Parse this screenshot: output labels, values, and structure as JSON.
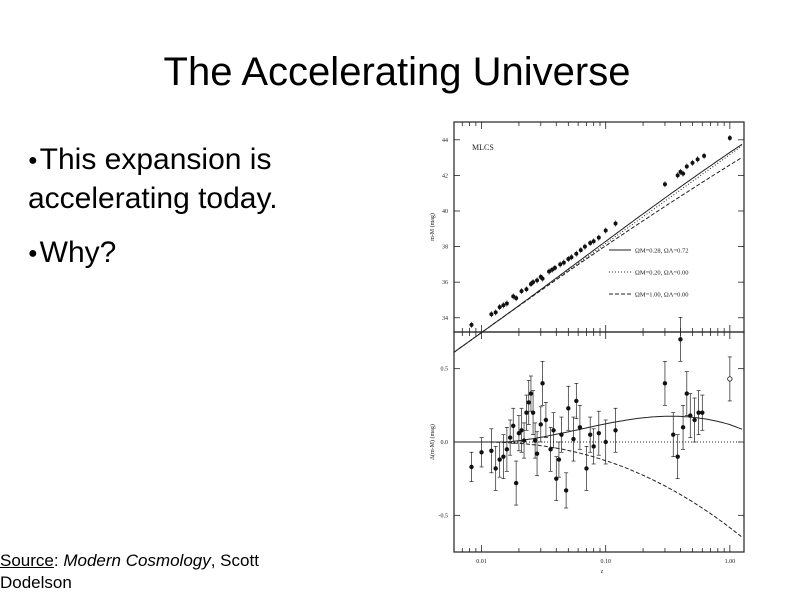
{
  "slide": {
    "title": "The Accelerating Universe",
    "bullets": [
      {
        "text": "This expansion is accelerating today."
      },
      {
        "text": "Why?"
      }
    ],
    "source": {
      "label": "Source",
      "sep": ": ",
      "book": "Modern Cosmology",
      "rest": ", Scott Dodelson"
    }
  },
  "chart_data": [
    {
      "type": "scatter",
      "title": "MLCS",
      "xlabel": "z",
      "ylabel": "m-M (mag)",
      "xscale": "log",
      "xlim": [
        0.006,
        1.3
      ],
      "ylim": [
        33.2,
        45
      ],
      "yticks": [
        34,
        36,
        38,
        40,
        42,
        44
      ],
      "ytick_labels": [
        "34",
        "36",
        "38",
        "40",
        "42",
        "44"
      ],
      "legend_position": "center-right",
      "series": [
        {
          "name": "ΩM=0.28, ΩΛ=0.72",
          "style": "solid"
        },
        {
          "name": "ΩM=0.20, ΩΛ=0.00",
          "style": "dotted"
        },
        {
          "name": "ΩM=1.00, ΩΛ=0.00",
          "style": "dashed"
        }
      ],
      "points": [
        {
          "x": 0.0083,
          "y": 33.6
        },
        {
          "x": 0.012,
          "y": 34.2
        },
        {
          "x": 0.013,
          "y": 34.3
        },
        {
          "x": 0.014,
          "y": 34.6
        },
        {
          "x": 0.015,
          "y": 34.7
        },
        {
          "x": 0.016,
          "y": 34.8
        },
        {
          "x": 0.018,
          "y": 35.2
        },
        {
          "x": 0.019,
          "y": 35.1
        },
        {
          "x": 0.021,
          "y": 35.5
        },
        {
          "x": 0.023,
          "y": 35.6
        },
        {
          "x": 0.025,
          "y": 35.9
        },
        {
          "x": 0.026,
          "y": 36.0
        },
        {
          "x": 0.028,
          "y": 36.1
        },
        {
          "x": 0.03,
          "y": 36.3
        },
        {
          "x": 0.031,
          "y": 36.2
        },
        {
          "x": 0.035,
          "y": 36.6
        },
        {
          "x": 0.037,
          "y": 36.7
        },
        {
          "x": 0.039,
          "y": 36.8
        },
        {
          "x": 0.043,
          "y": 37.0
        },
        {
          "x": 0.046,
          "y": 37.1
        },
        {
          "x": 0.05,
          "y": 37.3
        },
        {
          "x": 0.053,
          "y": 37.4
        },
        {
          "x": 0.058,
          "y": 37.6
        },
        {
          "x": 0.063,
          "y": 37.8
        },
        {
          "x": 0.068,
          "y": 38.0
        },
        {
          "x": 0.075,
          "y": 38.2
        },
        {
          "x": 0.08,
          "y": 38.3
        },
        {
          "x": 0.088,
          "y": 38.5
        },
        {
          "x": 0.1,
          "y": 38.9
        },
        {
          "x": 0.12,
          "y": 39.3
        },
        {
          "x": 0.3,
          "y": 41.5
        },
        {
          "x": 0.38,
          "y": 42.0
        },
        {
          "x": 0.4,
          "y": 42.2
        },
        {
          "x": 0.42,
          "y": 42.1
        },
        {
          "x": 0.45,
          "y": 42.5
        },
        {
          "x": 0.5,
          "y": 42.7
        },
        {
          "x": 0.55,
          "y": 42.9
        },
        {
          "x": 0.62,
          "y": 43.1
        },
        {
          "x": 1.0,
          "y": 44.1
        }
      ]
    },
    {
      "type": "scatter",
      "xlabel": "z",
      "ylabel": "Δ(m-M) (mag)",
      "xscale": "log",
      "xlim": [
        0.006,
        1.3
      ],
      "ylim": [
        -0.75,
        0.75
      ],
      "xticks": [
        0.01,
        0.1,
        1.0
      ],
      "xtick_labels": [
        "0.01",
        "0.10",
        "1.00"
      ],
      "yticks": [
        -0.5,
        0.0,
        0.5
      ],
      "ytick_labels": [
        "-0.5",
        "0.0",
        "0.5"
      ],
      "points": [
        {
          "x": 0.0083,
          "y": -0.17,
          "err": 0.1
        },
        {
          "x": 0.01,
          "y": -0.07,
          "err": 0.1
        },
        {
          "x": 0.012,
          "y": -0.06,
          "err": 0.15
        },
        {
          "x": 0.013,
          "y": -0.18,
          "err": 0.15
        },
        {
          "x": 0.014,
          "y": -0.12,
          "err": 0.12
        },
        {
          "x": 0.015,
          "y": -0.1,
          "err": 0.15
        },
        {
          "x": 0.016,
          "y": -0.05,
          "err": 0.15
        },
        {
          "x": 0.017,
          "y": 0.03,
          "err": 0.12
        },
        {
          "x": 0.018,
          "y": 0.11,
          "err": 0.12
        },
        {
          "x": 0.019,
          "y": -0.28,
          "err": 0.15
        },
        {
          "x": 0.02,
          "y": 0.06,
          "err": 0.12
        },
        {
          "x": 0.021,
          "y": 0.08,
          "err": 0.15
        },
        {
          "x": 0.022,
          "y": 0.01,
          "err": 0.12
        },
        {
          "x": 0.023,
          "y": 0.2,
          "err": 0.12
        },
        {
          "x": 0.024,
          "y": 0.27,
          "err": 0.15
        },
        {
          "x": 0.025,
          "y": 0.33,
          "err": 0.12
        },
        {
          "x": 0.026,
          "y": 0.2,
          "err": 0.15
        },
        {
          "x": 0.027,
          "y": 0.01,
          "err": 0.12
        },
        {
          "x": 0.028,
          "y": -0.08,
          "err": 0.15
        },
        {
          "x": 0.03,
          "y": 0.12,
          "err": 0.12
        },
        {
          "x": 0.031,
          "y": 0.4,
          "err": 0.15
        },
        {
          "x": 0.033,
          "y": 0.15,
          "err": 0.12
        },
        {
          "x": 0.036,
          "y": -0.05,
          "err": 0.15
        },
        {
          "x": 0.038,
          "y": 0.08,
          "err": 0.12
        },
        {
          "x": 0.04,
          "y": -0.25,
          "err": 0.15
        },
        {
          "x": 0.042,
          "y": -0.12,
          "err": 0.12
        },
        {
          "x": 0.044,
          "y": 0.05,
          "err": 0.12
        },
        {
          "x": 0.048,
          "y": -0.33,
          "err": 0.12
        },
        {
          "x": 0.05,
          "y": 0.23,
          "err": 0.15
        },
        {
          "x": 0.055,
          "y": 0.02,
          "err": 0.15
        },
        {
          "x": 0.058,
          "y": 0.28,
          "err": 0.12
        },
        {
          "x": 0.062,
          "y": 0.1,
          "err": 0.15
        },
        {
          "x": 0.07,
          "y": -0.18,
          "err": 0.15
        },
        {
          "x": 0.075,
          "y": 0.05,
          "err": 0.12
        },
        {
          "x": 0.08,
          "y": -0.03,
          "err": 0.12
        },
        {
          "x": 0.088,
          "y": 0.06,
          "err": 0.15
        },
        {
          "x": 0.1,
          "y": 0.0,
          "err": 0.15
        },
        {
          "x": 0.12,
          "y": 0.08,
          "err": 0.15
        },
        {
          "x": 0.3,
          "y": 0.4,
          "err": 0.15
        },
        {
          "x": 0.35,
          "y": 0.05,
          "err": 0.15
        },
        {
          "x": 0.38,
          "y": -0.1,
          "err": 0.15
        },
        {
          "x": 0.4,
          "y": 0.7,
          "err": 0.15
        },
        {
          "x": 0.42,
          "y": 0.1,
          "err": 0.15
        },
        {
          "x": 0.45,
          "y": 0.33,
          "err": 0.15
        },
        {
          "x": 0.48,
          "y": 0.18,
          "err": 0.15
        },
        {
          "x": 0.52,
          "y": 0.15,
          "err": 0.15
        },
        {
          "x": 0.56,
          "y": 0.2,
          "err": 0.15
        },
        {
          "x": 0.6,
          "y": 0.2,
          "err": 0.12
        },
        {
          "x": 1.0,
          "y": 0.43,
          "err": 0.15,
          "open": true
        }
      ]
    }
  ]
}
